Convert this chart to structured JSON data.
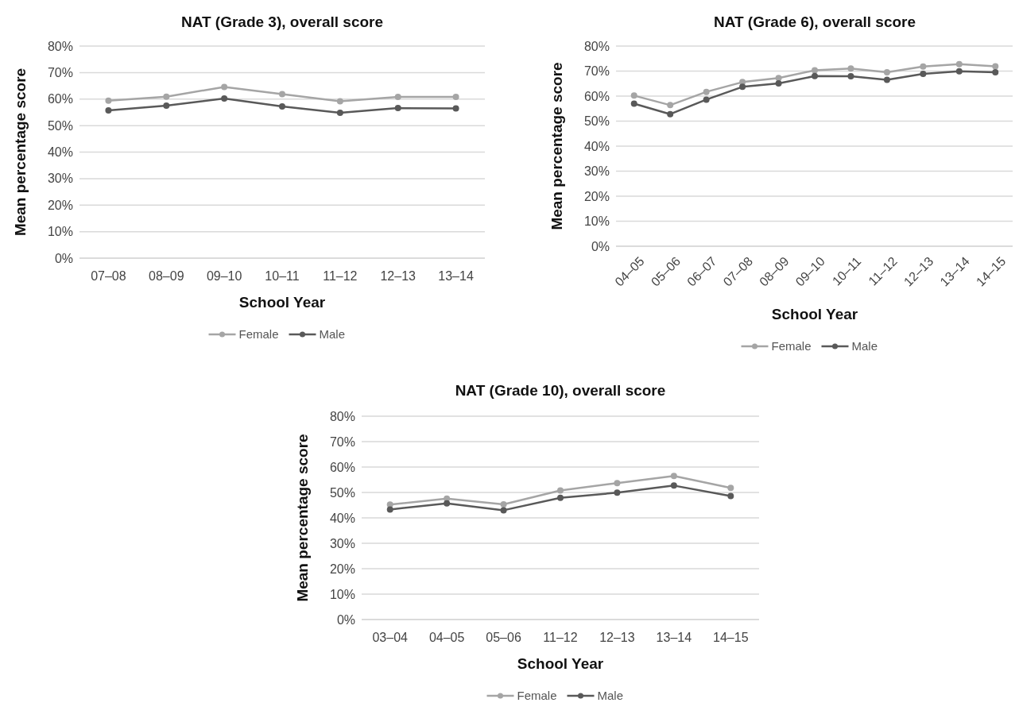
{
  "chart_data": [
    {
      "type": "line",
      "title": "NAT (Grade 3), overall score",
      "xlabel": "School Year",
      "ylabel": "Mean percentage score",
      "categories": [
        "07–08",
        "08–09",
        "09–10",
        "10–11",
        "11–12",
        "12–13",
        "13–14"
      ],
      "series": [
        {
          "name": "Female",
          "color": "#a5a5a5",
          "values": [
            59.4,
            60.9,
            64.6,
            61.9,
            59.2,
            60.8,
            60.8
          ]
        },
        {
          "name": "Male",
          "color": "#595959",
          "values": [
            55.7,
            57.5,
            60.2,
            57.2,
            54.8,
            56.6,
            56.5
          ]
        }
      ],
      "ylim": [
        0,
        80
      ],
      "yticks": [
        {
          "value": 0,
          "label": "0%"
        },
        {
          "value": 10,
          "label": "10%"
        },
        {
          "value": 20,
          "label": "20%"
        },
        {
          "value": 30,
          "label": "30%"
        },
        {
          "value": 40,
          "label": "40%"
        },
        {
          "value": 50,
          "label": "50%"
        },
        {
          "value": 60,
          "label": "60%"
        },
        {
          "value": 70,
          "label": "70%"
        },
        {
          "value": 80,
          "label": "80%"
        }
      ],
      "grid": "y",
      "legend": "bottom",
      "marker": "circle",
      "line_style": "solid"
    },
    {
      "type": "line",
      "title": "NAT (Grade 6), overall score",
      "xlabel": "School Year",
      "ylabel": "Mean percentage score",
      "categories": [
        "04–05",
        "05–06",
        "06–07",
        "07–08",
        "08–09",
        "09–10",
        "10–11",
        "11–12",
        "12–13",
        "13–14",
        "14–15"
      ],
      "series": [
        {
          "name": "Female",
          "color": "#a5a5a5",
          "values": [
            60.2,
            56.4,
            61.7,
            65.6,
            67.2,
            70.3,
            71.0,
            69.5,
            71.8,
            72.8,
            71.9
          ]
        },
        {
          "name": "Male",
          "color": "#595959",
          "values": [
            57.0,
            52.8,
            58.6,
            63.7,
            65.1,
            68.0,
            67.9,
            66.5,
            68.9,
            69.9,
            69.5
          ]
        }
      ],
      "ylim": [
        0,
        80
      ],
      "yticks": [
        {
          "value": 0,
          "label": "0%"
        },
        {
          "value": 10,
          "label": "10%"
        },
        {
          "value": 20,
          "label": "20%"
        },
        {
          "value": 30,
          "label": "30%"
        },
        {
          "value": 40,
          "label": "40%"
        },
        {
          "value": 50,
          "label": "50%"
        },
        {
          "value": 60,
          "label": "60%"
        },
        {
          "value": 70,
          "label": "70%"
        },
        {
          "value": 80,
          "label": "80%"
        }
      ],
      "grid": "y",
      "legend": "bottom",
      "marker": "circle",
      "line_style": "solid"
    },
    {
      "type": "line",
      "title": "NAT (Grade 10), overall score",
      "xlabel": "School Year",
      "ylabel": "Mean percentage score",
      "categories": [
        "03–04",
        "04–05",
        "05–06",
        "11–12",
        "12–13",
        "13–14",
        "14–15"
      ],
      "series": [
        {
          "name": "Female",
          "color": "#a5a5a5",
          "values": [
            45.2,
            47.6,
            45.3,
            50.8,
            53.7,
            56.5,
            51.8
          ]
        },
        {
          "name": "Male",
          "color": "#595959",
          "values": [
            43.3,
            45.7,
            43.0,
            47.9,
            49.9,
            52.7,
            48.6
          ]
        }
      ],
      "ylim": [
        0,
        80
      ],
      "yticks": [
        {
          "value": 0,
          "label": "0%"
        },
        {
          "value": 10,
          "label": "10%"
        },
        {
          "value": 20,
          "label": "20%"
        },
        {
          "value": 30,
          "label": "30%"
        },
        {
          "value": 40,
          "label": "40%"
        },
        {
          "value": 50,
          "label": "50%"
        },
        {
          "value": 60,
          "label": "60%"
        },
        {
          "value": 70,
          "label": "70%"
        },
        {
          "value": 80,
          "label": "80%"
        }
      ],
      "grid": "y",
      "legend": "bottom",
      "marker": "circle",
      "line_style": "solid"
    }
  ]
}
